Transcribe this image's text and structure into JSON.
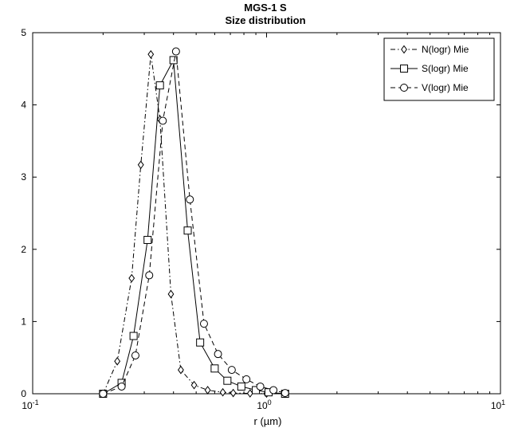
{
  "chart_data": {
    "type": "line",
    "title": "MGS-1 S",
    "subtitle": "Size distribution",
    "xlabel": "r (µm)",
    "ylabel": "",
    "xscale": "log",
    "xlim": [
      0.1,
      10
    ],
    "ylim": [
      0,
      5
    ],
    "xticks": [
      {
        "value": 0.1,
        "base": "10",
        "exp": "-1"
      },
      {
        "value": 1,
        "base": "10",
        "exp": "0"
      },
      {
        "value": 10,
        "base": "10",
        "exp": "1"
      }
    ],
    "yticks": [
      0,
      1,
      2,
      3,
      4,
      5
    ],
    "grid": false,
    "legend_position": "top-right",
    "line_color": "#000000",
    "series": [
      {
        "name": "N(logr) Mie",
        "marker": "diamond",
        "dash": "dashdot",
        "x": [
          0.2,
          0.23,
          0.265,
          0.29,
          0.32,
          0.35,
          0.39,
          0.43,
          0.49,
          0.56,
          0.65,
          0.72,
          0.85,
          1.0,
          1.2
        ],
        "y": [
          0,
          0.45,
          1.6,
          3.17,
          4.7,
          3.8,
          1.38,
          0.33,
          0.12,
          0.05,
          0.02,
          0.01,
          0.005,
          0.002,
          0
        ]
      },
      {
        "name": "S(logr) Mie",
        "marker": "square",
        "dash": "solid",
        "x": [
          0.2,
          0.24,
          0.27,
          0.31,
          0.35,
          0.4,
          0.46,
          0.52,
          0.6,
          0.68,
          0.78,
          0.9,
          1.02,
          1.2
        ],
        "y": [
          0,
          0.15,
          0.8,
          2.13,
          4.27,
          4.62,
          2.26,
          0.71,
          0.35,
          0.18,
          0.1,
          0.05,
          0.02,
          0
        ]
      },
      {
        "name": "V(logr) Mie",
        "marker": "circle",
        "dash": "dashed",
        "x": [
          0.2,
          0.24,
          0.275,
          0.315,
          0.36,
          0.41,
          0.47,
          0.54,
          0.62,
          0.71,
          0.82,
          0.94,
          1.07,
          1.2
        ],
        "y": [
          0,
          0.1,
          0.53,
          1.64,
          3.78,
          4.74,
          2.69,
          0.97,
          0.55,
          0.33,
          0.2,
          0.1,
          0.05,
          0.01
        ]
      }
    ]
  }
}
